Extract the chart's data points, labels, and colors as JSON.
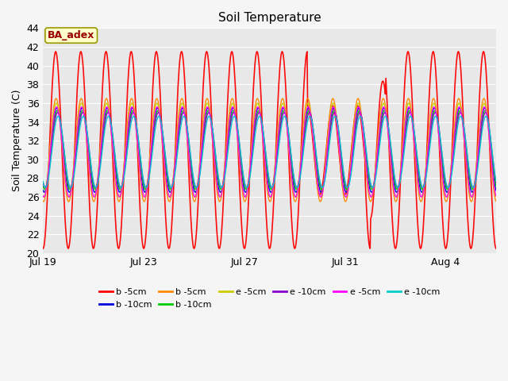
{
  "title": "Soil Temperature",
  "ylabel": "Soil Temperature (C)",
  "ylim": [
    20,
    44
  ],
  "yticks": [
    20,
    22,
    24,
    26,
    28,
    30,
    32,
    34,
    36,
    38,
    40,
    42,
    44
  ],
  "xtick_labels": [
    "Jul 19",
    "Jul 23",
    "Jul 27",
    "Jul 31",
    "Aug 4"
  ],
  "xtick_positions": [
    0,
    4,
    8,
    12,
    16
  ],
  "n_days": 18,
  "series": [
    {
      "label": "b -5cm",
      "color": "#ff0000",
      "lw": 1.2,
      "amplitude": 10.5,
      "baseline": 31.0,
      "phase": 1.57,
      "a_phase": 0.0
    },
    {
      "label": "b -10cm",
      "color": "#0000dd",
      "lw": 1.0,
      "amplitude": 4.5,
      "baseline": 31.0,
      "phase": 1.87,
      "a_phase": 0.3
    },
    {
      "label": "b -5cm",
      "color": "#ff8800",
      "lw": 1.0,
      "amplitude": 5.5,
      "baseline": 31.0,
      "phase": 1.67,
      "a_phase": 0.2
    },
    {
      "label": "b -10cm",
      "color": "#00cc00",
      "lw": 1.0,
      "amplitude": 4.2,
      "baseline": 31.0,
      "phase": 1.97,
      "a_phase": 0.4
    },
    {
      "label": "e -5cm",
      "color": "#cccc00",
      "lw": 1.0,
      "amplitude": 5.0,
      "baseline": 31.0,
      "phase": 1.72,
      "a_phase": 0.1
    },
    {
      "label": "e -10cm",
      "color": "#8800cc",
      "lw": 1.0,
      "amplitude": 4.0,
      "baseline": 31.0,
      "phase": 2.07,
      "a_phase": 0.5
    },
    {
      "label": "e -5cm",
      "color": "#ff00ff",
      "lw": 1.0,
      "amplitude": 4.8,
      "baseline": 30.8,
      "phase": 1.77,
      "a_phase": 0.25
    },
    {
      "label": "e -10cm",
      "color": "#00cccc",
      "lw": 1.0,
      "amplitude": 3.8,
      "baseline": 30.8,
      "phase": 2.17,
      "a_phase": 0.6
    }
  ],
  "annotation_text": "BA_adex",
  "fig_bg_color": "#f5f5f5",
  "plot_bg_color": "#e8e8e8",
  "grid_color": "#ffffff",
  "title_fontsize": 11,
  "label_fontsize": 9,
  "tick_fontsize": 9,
  "legend_fontsize": 8
}
